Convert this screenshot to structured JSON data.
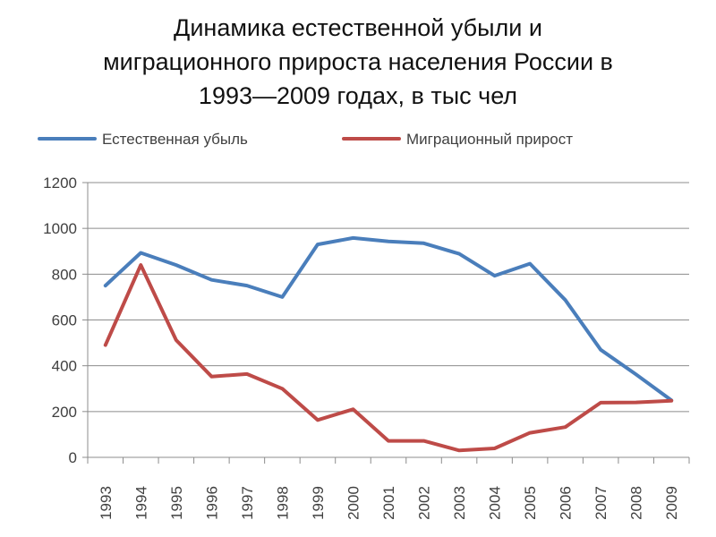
{
  "title_lines": [
    "Динамика естественной убыли и",
    "миграционного прироста населения России в",
    "1993—2009 годах, в тыс чел"
  ],
  "chart_data": {
    "type": "line",
    "title": "Динамика естественной убыли и миграционного прироста населения России в 1993—2009 годах, в тыс чел",
    "categories": [
      "1993",
      "1994",
      "1995",
      "1996",
      "1997",
      "1998",
      "1999",
      "2000",
      "2001",
      "2002",
      "2003",
      "2004",
      "2005",
      "2006",
      "2007",
      "2008",
      "2009"
    ],
    "series": [
      {
        "name": "Естественная убыль",
        "color": "#4a7ebb",
        "values": [
          750,
          893,
          840,
          775,
          750,
          700,
          930,
          958,
          943,
          935,
          889,
          793,
          846,
          687,
          470,
          362,
          249
        ]
      },
      {
        "name": "Миграционный прирост",
        "color": "#be4b48",
        "values": [
          490,
          840,
          512,
          353,
          364,
          300,
          163,
          210,
          72,
          72,
          30,
          39,
          107,
          132,
          239,
          240,
          247
        ]
      }
    ],
    "ylim": [
      0,
      1200
    ],
    "yticks": [
      0,
      200,
      400,
      600,
      800,
      1000,
      1200
    ],
    "grid": true,
    "legend": "top"
  }
}
